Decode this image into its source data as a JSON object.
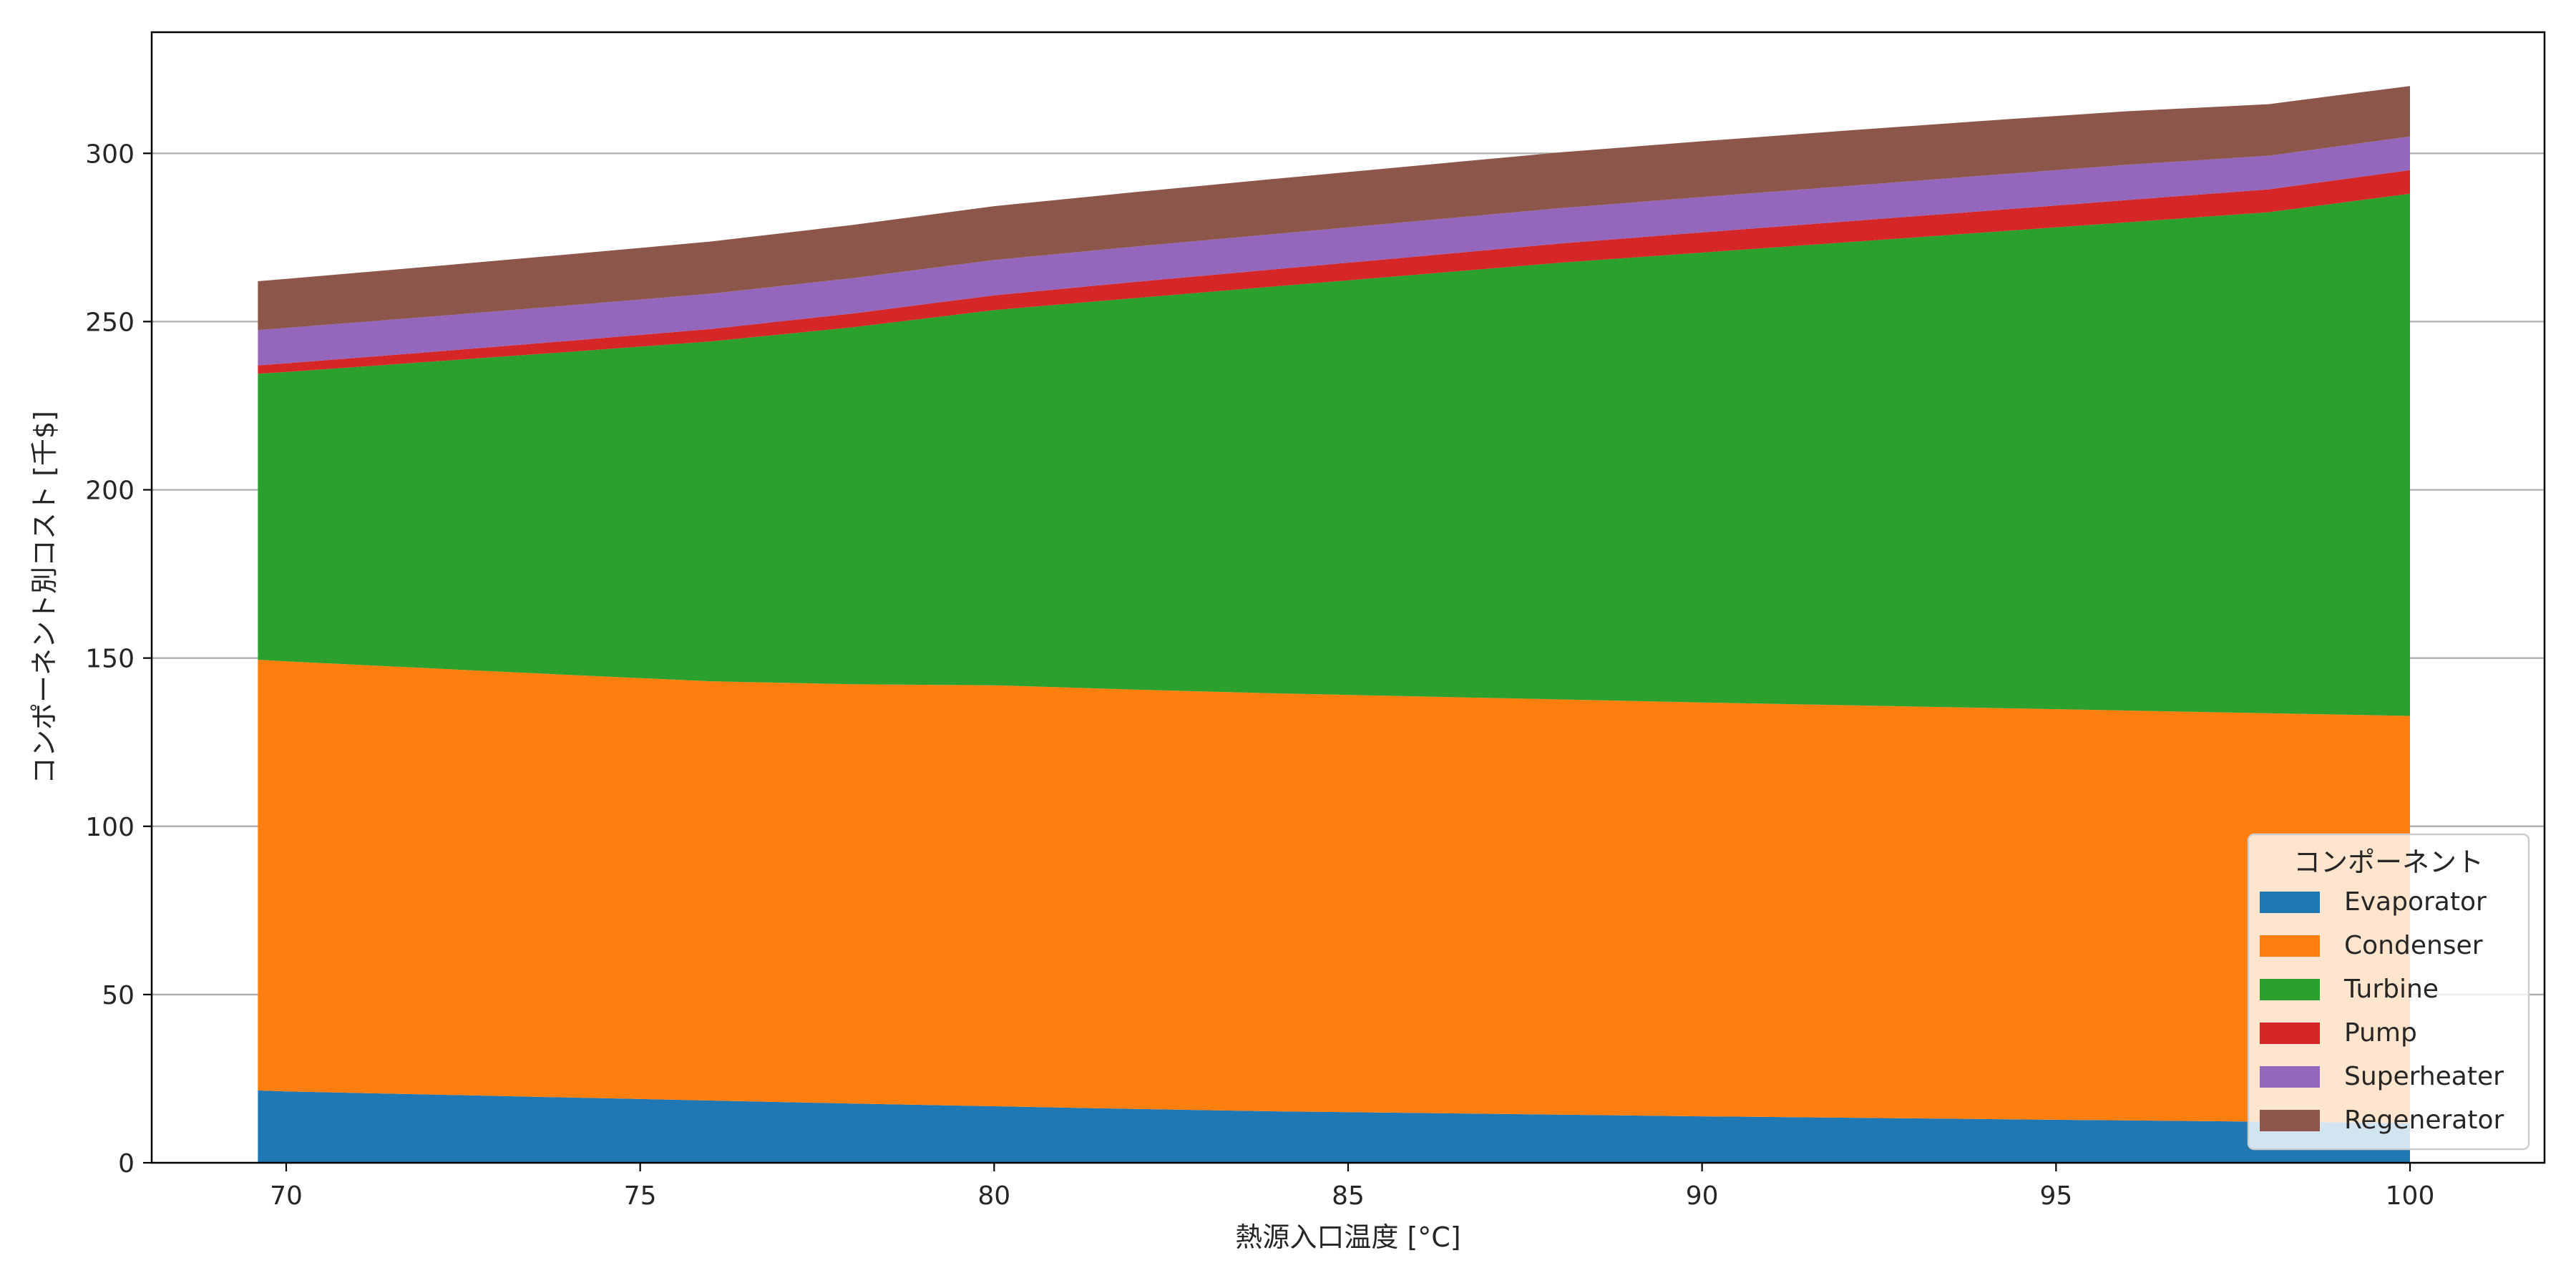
{
  "chart_data": {
    "type": "area",
    "stacked": true,
    "title": "",
    "xlabel": "熱源入口温度 [°C]",
    "ylabel": "コンポーネント別コスト [千$]",
    "xlim": [
      68.1,
      101.9
    ],
    "ylim": [
      0,
      336
    ],
    "xticks": [
      70,
      75,
      80,
      85,
      90,
      95,
      100
    ],
    "yticks": [
      0,
      50,
      100,
      150,
      200,
      250,
      300
    ],
    "grid": "y",
    "legend": {
      "title": "コンポーネント",
      "placement": "lower right"
    },
    "x": [
      69.6,
      70,
      72,
      74,
      76,
      78,
      80,
      82,
      84,
      86,
      88,
      90,
      92,
      94,
      96,
      98,
      100
    ],
    "series": [
      {
        "name": "Evaporator",
        "color": "#1f77b4",
        "values": [
          21.5,
          21.2,
          20.3,
          19.4,
          18.5,
          17.6,
          16.8,
          16.0,
          15.3,
          14.8,
          14.3,
          13.8,
          13.4,
          13.0,
          12.6,
          12.2,
          11.8
        ]
      },
      {
        "name": "Condenser",
        "color": "#ff7f0e",
        "values": [
          128.0,
          127.8,
          126.7,
          125.6,
          124.6,
          124.6,
          125.1,
          124.6,
          124.2,
          123.8,
          123.4,
          123.0,
          122.6,
          122.2,
          121.8,
          121.4,
          121.0
        ]
      },
      {
        "name": "Turbine",
        "color": "#2ca02c",
        "values": [
          85.0,
          86.0,
          91.0,
          96.0,
          101.0,
          106.1,
          111.5,
          116.4,
          121.0,
          125.4,
          129.8,
          133.7,
          137.5,
          141.3,
          145.1,
          148.9,
          155.2
        ]
      },
      {
        "name": "Pump",
        "color": "#d62728",
        "values": [
          2.5,
          2.6,
          2.9,
          3.3,
          3.7,
          4.1,
          4.4,
          4.8,
          5.1,
          5.4,
          5.7,
          6.0,
          6.2,
          6.4,
          6.6,
          6.8,
          7.0
        ]
      },
      {
        "name": "Superheater",
        "color": "#9467bd",
        "values": [
          10.5,
          10.5,
          10.5,
          10.5,
          10.5,
          10.5,
          10.5,
          10.5,
          10.5,
          10.5,
          10.5,
          10.5,
          10.5,
          10.5,
          10.5,
          10.0,
          10.0
        ]
      },
      {
        "name": "Regenerator",
        "color": "#8c564b",
        "values": [
          14.5,
          14.6,
          14.9,
          15.2,
          15.5,
          15.8,
          16.0,
          16.2,
          16.4,
          16.5,
          16.6,
          16.6,
          16.5,
          16.3,
          15.9,
          15.3,
          15.0
        ]
      }
    ]
  }
}
